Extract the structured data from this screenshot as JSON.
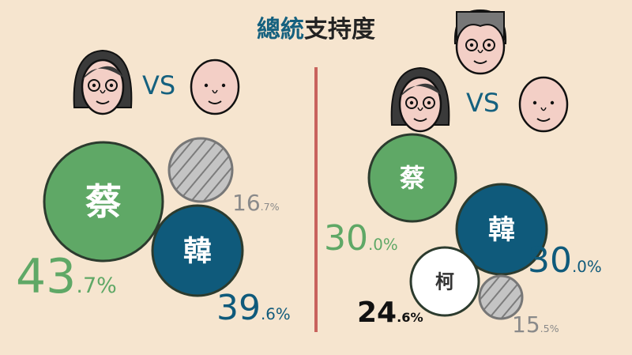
{
  "title": {
    "accent": "總統",
    "rest": "支持度"
  },
  "vs_label": "VS",
  "colors": {
    "tsai": "#5fa866",
    "han": "#0f5a7b",
    "ko": "#ffffff",
    "undecided": "#c4c4c4",
    "divider": "#c8635d",
    "background": "#f6e5cf"
  },
  "chart_data": [
    {
      "type": "bubble",
      "panel": "two-way",
      "series": [
        {
          "name": "蔡",
          "value": 43.7,
          "int": "43",
          "dec": ".7%",
          "color": "#5fa866"
        },
        {
          "name": "",
          "value": 16.7,
          "int": "16",
          "dec": ".7%",
          "color": "#c4c4c4",
          "pattern": "hatched"
        },
        {
          "name": "韓",
          "value": 39.6,
          "int": "39",
          "dec": ".6%",
          "color": "#0f5a7b"
        }
      ]
    },
    {
      "type": "bubble",
      "panel": "three-way",
      "series": [
        {
          "name": "蔡",
          "value": 30.0,
          "int": "30",
          "dec": ".0%",
          "color": "#5fa866"
        },
        {
          "name": "韓",
          "value": 30.0,
          "int": "30",
          "dec": ".0%",
          "color": "#0f5a7b"
        },
        {
          "name": "柯",
          "value": 24.6,
          "int": "24",
          "dec": ".6%",
          "color": "#ffffff"
        },
        {
          "name": "",
          "value": 15.5,
          "int": "15",
          "dec": ".5%",
          "color": "#c4c4c4",
          "pattern": "hatched"
        }
      ]
    }
  ]
}
